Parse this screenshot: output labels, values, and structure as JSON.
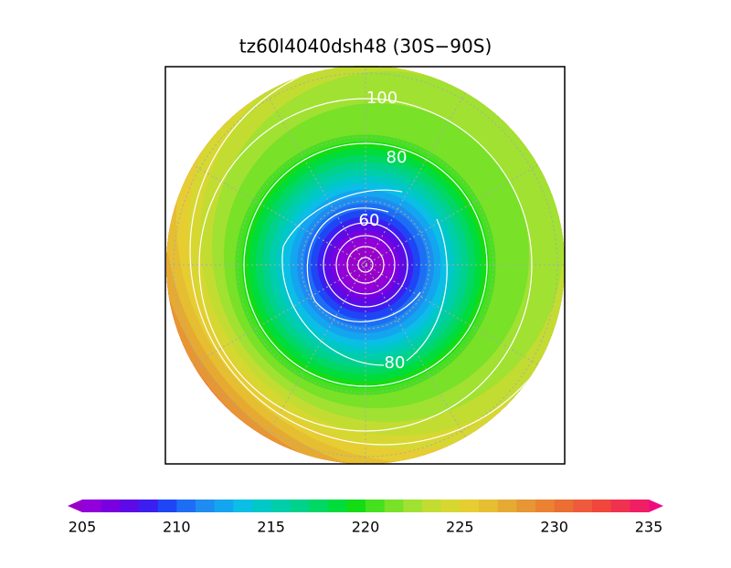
{
  "title": "tz60l4040dsh48 (30S−90S)",
  "contour_labels": [
    "100",
    "80",
    "60",
    "80"
  ],
  "colorbar": {
    "lim": [
      205,
      235
    ],
    "ticks": [
      205,
      210,
      215,
      220,
      225,
      230,
      235
    ],
    "colors": [
      "#9100d9",
      "#7a00e0",
      "#5e0ae6",
      "#3c1ef0",
      "#1e46f5",
      "#1e6ef5",
      "#1e8cf0",
      "#14a5f0",
      "#0abee6",
      "#00c8c8",
      "#00cdaa",
      "#00d28c",
      "#00d764",
      "#00dc3c",
      "#14dc14",
      "#46e11e",
      "#78e128",
      "#a0e132",
      "#c3dc32",
      "#d7d732",
      "#e6cd32",
      "#e6be32",
      "#e6aa32",
      "#e69632",
      "#eb8232",
      "#eb6e32",
      "#f05a3c",
      "#f0463c",
      "#f03250",
      "#f01e64"
    ],
    "under_color": "#9900cc",
    "over_color": "#f00a82"
  }
}
